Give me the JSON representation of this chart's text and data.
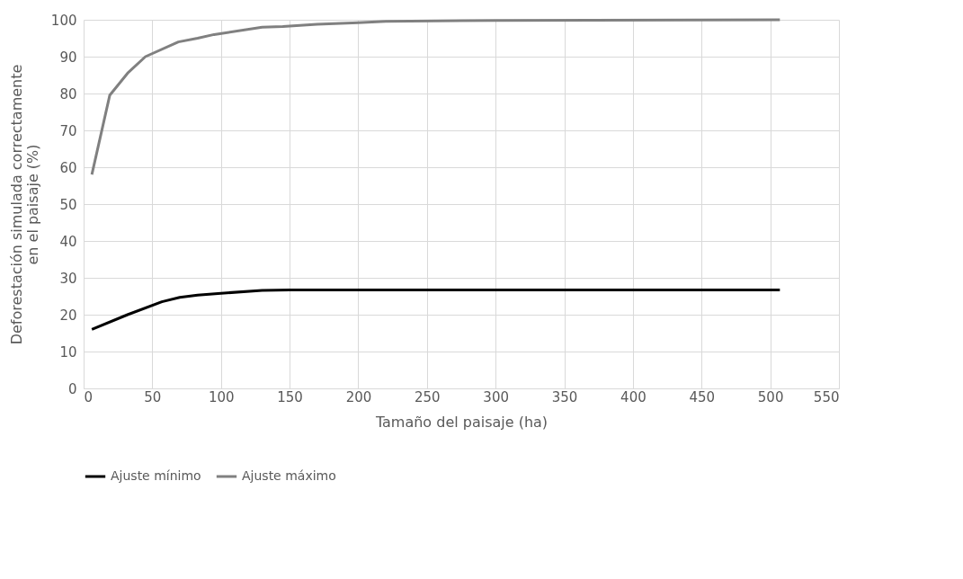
{
  "chart_data": {
    "type": "line",
    "xlabel": "Tamaño del paisaje (ha)",
    "ylabel": "Deforestación simulada correctamente en el paisaje (%)",
    "xlim": [
      0,
      550
    ],
    "xticks": [
      0,
      50,
      100,
      150,
      200,
      250,
      300,
      350,
      400,
      450,
      500,
      550
    ],
    "ylim": [
      0,
      100
    ],
    "yticks": [
      0,
      10,
      20,
      30,
      40,
      50,
      60,
      70,
      80,
      90,
      100
    ],
    "grid": true,
    "legend": "bottom",
    "marker": "none",
    "line_style": "solid",
    "series": [
      {
        "name": "Ajuste mínimo",
        "color": "#000000",
        "x": [
          6,
          32,
          57,
          70,
          83,
          100,
          130,
          150,
          507
        ],
        "values": [
          16,
          20,
          23.5,
          24.7,
          25.3,
          25.8,
          26.6,
          26.7,
          26.7
        ]
      },
      {
        "name": "Ajuste máximo",
        "color": "#808080",
        "x": [
          6,
          19,
          32,
          45,
          69,
          83,
          95,
          130,
          145,
          170,
          200,
          220,
          300,
          507
        ],
        "values": [
          58,
          79.5,
          85.5,
          90,
          94,
          95,
          96,
          98,
          98.2,
          98.8,
          99.2,
          99.6,
          99.8,
          100
        ]
      }
    ]
  }
}
